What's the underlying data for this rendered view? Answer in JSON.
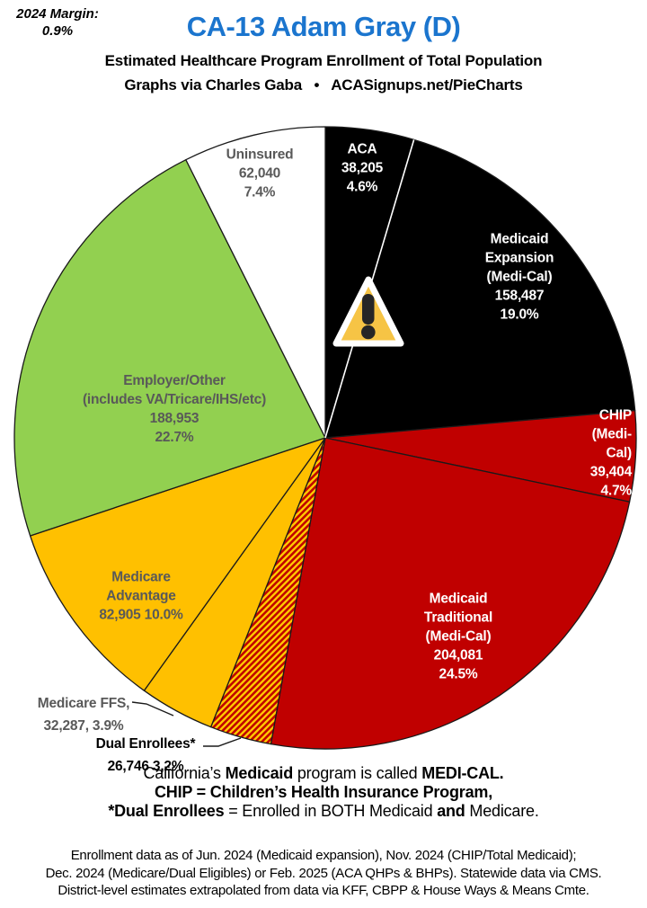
{
  "header": {
    "margin_note": {
      "label": "2024 Margin:",
      "value": "0.9%"
    },
    "title": "CA-13 Adam Gray (D)",
    "title_color": "#1B75CE",
    "subtitle": "Estimated Healthcare Program Enrollment of Total Population",
    "credit": "Graphs via Charles Gaba   •   ACASignups.net/PieCharts"
  },
  "chart_data": {
    "type": "pie",
    "title": "Estimated Healthcare Program Enrollment of Total Population",
    "district": "CA-13",
    "representative": "Adam Gray (D)",
    "direction": "clockwise",
    "start_angle_deg": 0,
    "legend_position": "labels-on-slices",
    "outline_color": "#1A1A1A",
    "divider_after_first_slice_color": "#FFFFFF",
    "slices": [
      {
        "id": "aca",
        "name": "ACA",
        "value": 38205,
        "pct": 4.6,
        "color": "#000000",
        "hatch": false,
        "label_lines": [
          "ACA",
          "38,205",
          "4.6%"
        ],
        "label_color": "#FFFFFF"
      },
      {
        "id": "medicaid-expansion",
        "name": "Medicaid Expansion (Medi-Cal)",
        "value": 158487,
        "pct": 19.0,
        "color": "#000000",
        "hatch": false,
        "label_lines": [
          "Medicaid",
          "Expansion",
          "(Medi-Cal)",
          "158,487",
          "19.0%"
        ],
        "label_color": "#FFFFFF"
      },
      {
        "id": "chip",
        "name": "CHIP (Medi-Cal)",
        "value": 39404,
        "pct": 4.7,
        "color": "#C00000",
        "hatch": false,
        "label_lines": [
          "CHIP (Medi-Cal)",
          "39,404 4.7%"
        ],
        "label_color": "#FFFFFF"
      },
      {
        "id": "medicaid-traditional",
        "name": "Medicaid Traditional (Medi-Cal)",
        "value": 204081,
        "pct": 24.5,
        "color": "#C00000",
        "hatch": false,
        "label_lines": [
          "Medicaid",
          "Traditional",
          "(Medi-Cal)",
          "204,081",
          "24.5%"
        ],
        "label_color": "#FFFFFF"
      },
      {
        "id": "dual-enrollees",
        "name": "Dual Enrollees*",
        "value": 26746,
        "pct": 3.2,
        "color": "#C00000",
        "hatch": true,
        "hatch_color": "#FFC800",
        "label_lines": [
          "Dual Enrollees*",
          "26,746 3,2%"
        ],
        "label_color": "#000000"
      },
      {
        "id": "medicare-ffs",
        "name": "Medicare FFS",
        "value": 32287,
        "pct": 3.9,
        "color": "#FFC000",
        "hatch": false,
        "label_lines": [
          "Medicare FFS,",
          "32,287, 3.9%"
        ],
        "label_color": "#595959"
      },
      {
        "id": "medicare-advantage",
        "name": "Medicare Advantage",
        "value": 82905,
        "pct": 10.0,
        "color": "#FFC000",
        "hatch": false,
        "label_lines": [
          "Medicare",
          "Advantage",
          "82,905 10.0%"
        ],
        "label_color": "#595959"
      },
      {
        "id": "employer-other",
        "name": "Employer/Other (includes VA/Tricare/IHS/etc)",
        "value": 188953,
        "pct": 22.7,
        "color": "#92D050",
        "hatch": false,
        "label_lines": [
          "Employer/Other",
          "(includes VA/Tricare/IHS/etc)",
          "188,953",
          "22.7%"
        ],
        "label_color": "#595959"
      },
      {
        "id": "uninsured",
        "name": "Uninsured",
        "value": 62040,
        "pct": 7.4,
        "color": "#FFFFFF",
        "hatch": false,
        "label_lines": [
          "Uninsured",
          "62,040",
          "7.4%"
        ],
        "label_color": "#595959"
      }
    ]
  },
  "warning_icon": {
    "shape": "triangle-exclamation",
    "fill": "#F6C445",
    "border": "#FFFFFF",
    "mark_color": "#262626"
  },
  "notes": {
    "lines": [
      [
        {
          "t": "California’s ",
          "b": false
        },
        {
          "t": "Medicaid",
          "b": true
        },
        {
          "t": " program is called ",
          "b": false
        },
        {
          "t": "MEDI-CAL.",
          "b": true
        }
      ],
      [
        {
          "t": "CHIP = Children’s Health Insurance Program,",
          "b": true
        }
      ],
      [
        {
          "t": "*Dual Enrollees",
          "b": true
        },
        {
          "t": " = Enrolled in BOTH Medicaid ",
          "b": false
        },
        {
          "t": "and",
          "b": true
        },
        {
          "t": " Medicare.",
          "b": false
        }
      ]
    ]
  },
  "footer": {
    "lines": [
      "Enrollment data as of Jun. 2024 (Medicaid expansion), Nov. 2024 (CHIP/Total Medicaid);",
      "Dec. 2024 (Medicare/Dual Eligibles) or Feb. 2025 (ACA QHPs & BHPs). Statewide data via CMS.",
      "District-level estimates extrapolated from data via KFF, CBPP & House Ways & Means Cmte."
    ]
  }
}
